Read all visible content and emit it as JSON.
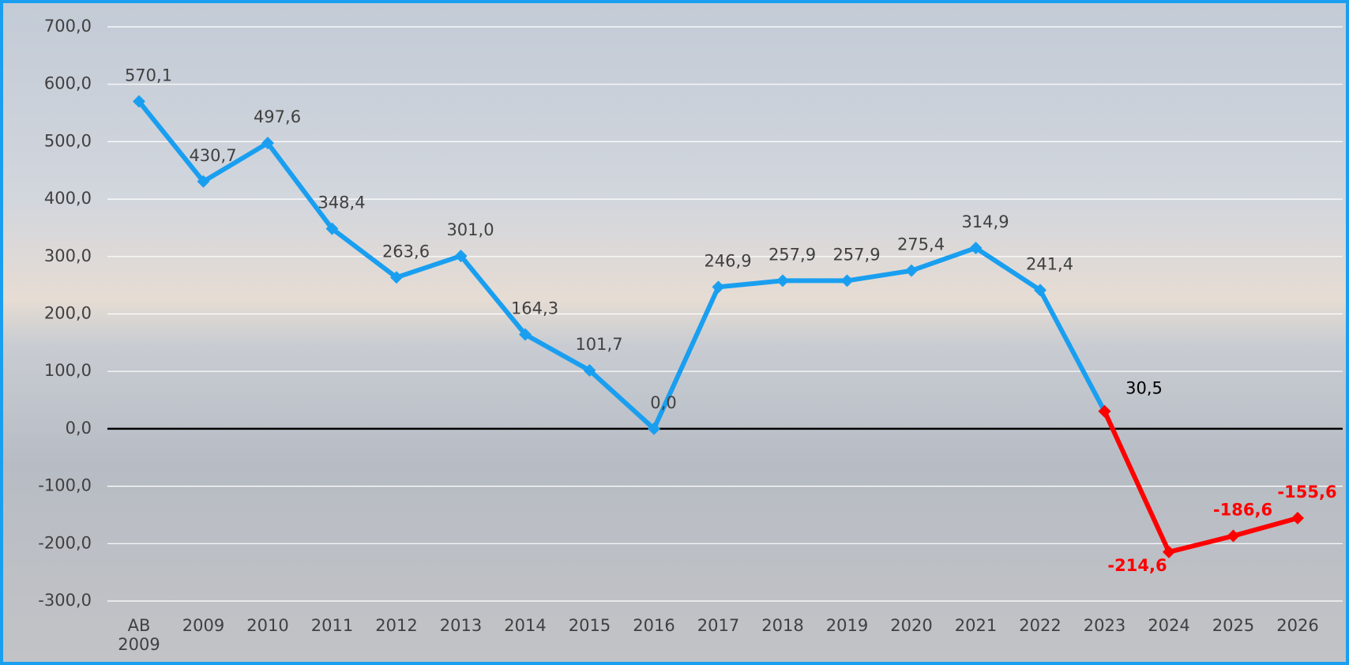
{
  "chart_data": {
    "type": "line",
    "categories": [
      "AB 2009",
      "2009",
      "2010",
      "2011",
      "2012",
      "2013",
      "2014",
      "2015",
      "2016",
      "2017",
      "2018",
      "2019",
      "2020",
      "2021",
      "2022",
      "2023",
      "2024",
      "2025",
      "2026"
    ],
    "series": [
      {
        "color": "#1a9ff0",
        "values": [
          570.1,
          430.7,
          497.6,
          348.4,
          263.6,
          301.0,
          164.3,
          101.7,
          0.0,
          246.9,
          257.9,
          257.9,
          275.4,
          314.9,
          241.4,
          30.5,
          null,
          null,
          null
        ],
        "value_labels": [
          "570,1",
          "430,7",
          "497,6",
          "348,4",
          "263,6",
          "301,0",
          "164,3",
          "101,7",
          "0,0",
          "246,9",
          "257,9",
          "257,9",
          "275,4",
          "314,9",
          "241,4",
          "30,5",
          null,
          null,
          null
        ]
      },
      {
        "color": "#ff0000",
        "values": [
          null,
          null,
          null,
          null,
          null,
          null,
          null,
          null,
          null,
          null,
          null,
          null,
          null,
          null,
          null,
          30.5,
          -214.6,
          -186.6,
          -155.6
        ],
        "value_labels": [
          null,
          null,
          null,
          null,
          null,
          null,
          null,
          null,
          null,
          null,
          null,
          null,
          null,
          null,
          null,
          null,
          "-214,6",
          "-186,6",
          "-155,6"
        ]
      }
    ],
    "ylim": [
      -300,
      700
    ],
    "yticks": [
      {
        "value": -300,
        "label": "-300,0"
      },
      {
        "value": -200,
        "label": "-200,0"
      },
      {
        "value": -100,
        "label": "-100,0"
      },
      {
        "value": 0,
        "label": "0,0"
      },
      {
        "value": 100,
        "label": "100,0"
      },
      {
        "value": 200,
        "label": "200,0"
      },
      {
        "value": 300,
        "label": "300,0"
      },
      {
        "value": 400,
        "label": "400,0"
      },
      {
        "value": 500,
        "label": "500,0"
      },
      {
        "value": 600,
        "label": "600,0"
      },
      {
        "value": 700,
        "label": "700,0"
      }
    ],
    "grid": true
  }
}
